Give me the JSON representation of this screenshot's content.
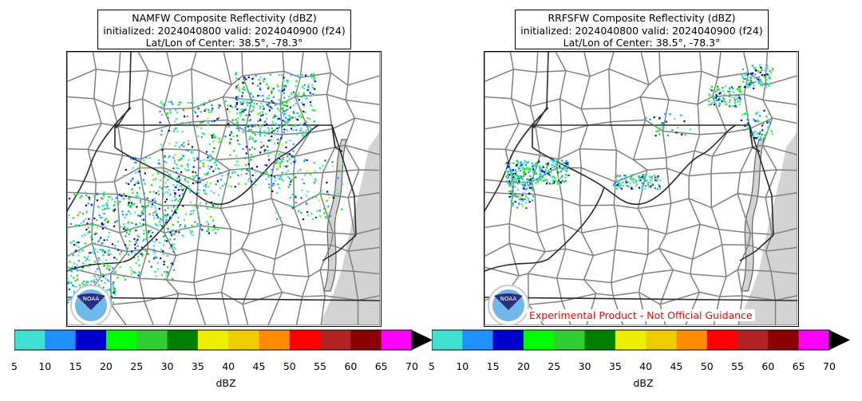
{
  "panels": [
    {
      "title_line1": "NAMFW Composite Reflectivity (dBZ)",
      "title_line2": "initialized: 2024040800 valid: 2024040900 (f24)",
      "title_line3": "Lat/Lon of Center: 38.5°, -78.3°"
    },
    {
      "title_line1": "RRFSFW Composite Reflectivity (dBZ)",
      "title_line2": "initialized: 2024040800 valid: 2024040900 (f24)",
      "title_line3": "Lat/Lon of Center: 38.5°, -78.3°",
      "disclaimer": "Experimental Product - Not Official Guidance"
    }
  ],
  "logo": {
    "text": "NOAA"
  },
  "colorbar_label": "dBZ",
  "chart_data": {
    "type": "heatmap",
    "levels": [
      5,
      10,
      15,
      20,
      25,
      30,
      35,
      40,
      45,
      50,
      55,
      60,
      65,
      70
    ],
    "tick_labels": [
      "5",
      "10",
      "15",
      "20",
      "25",
      "30",
      "35",
      "40",
      "45",
      "50",
      "55",
      "60",
      "65",
      "70"
    ],
    "colors": [
      "#40e0d0",
      "#1e90ff",
      "#0000cd",
      "#00ff00",
      "#32cd32",
      "#008000",
      "#eeee00",
      "#eecc00",
      "#ff8c00",
      "#ff0000",
      "#b22222",
      "#8b0000",
      "#ff00ff"
    ],
    "extend": "max",
    "xlabel": "dBZ",
    "land_color": "#ffffff",
    "water_color": "#d3d3d3",
    "boundary_color": "#808080"
  }
}
